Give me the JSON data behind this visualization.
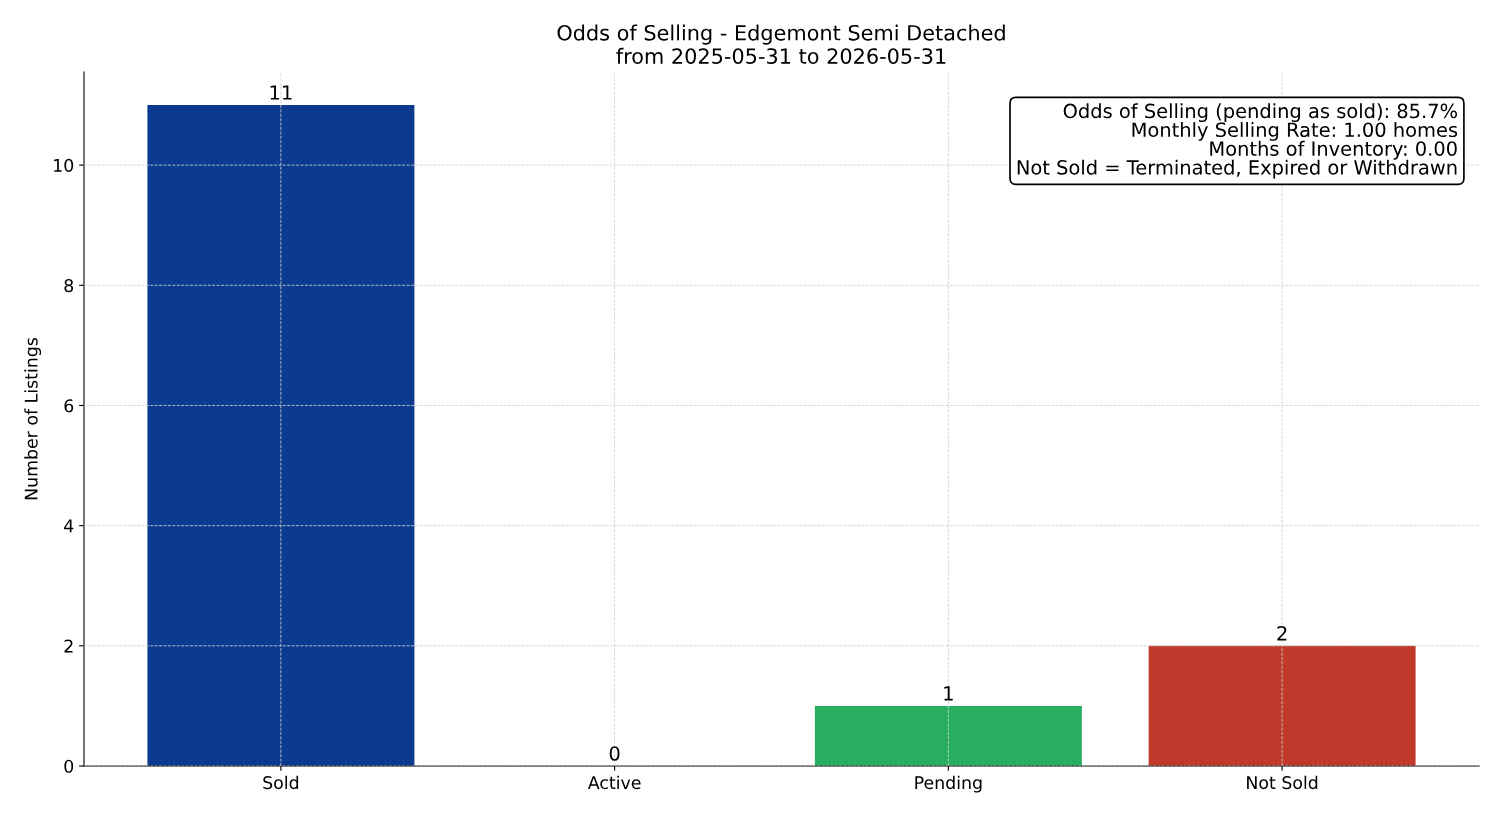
{
  "chart_data": {
    "type": "bar",
    "title": "Odds of Selling - Edgemont Semi Detached",
    "subtitle": "from 2025-05-31 to 2026-05-31",
    "ylabel": "Number of Listings",
    "categories": [
      "Sold",
      "Active",
      "Pending",
      "Not Sold"
    ],
    "values": [
      11,
      0,
      1,
      2
    ],
    "colors": [
      "#0b3a8f",
      null,
      "#27ae60",
      "#c0392b"
    ],
    "ylim": [
      0,
      11.55
    ],
    "yticks": [
      0,
      2,
      4,
      6,
      8,
      10
    ],
    "grid": true,
    "data_labels": true,
    "annotations": [
      "Odds of Selling (pending as sold): 85.7%\nMonthly Selling Rate: 1.00 homes\nMonths of Inventory: 0.00\nNot Sold = Terminated, Expired or Withdrawn"
    ]
  }
}
